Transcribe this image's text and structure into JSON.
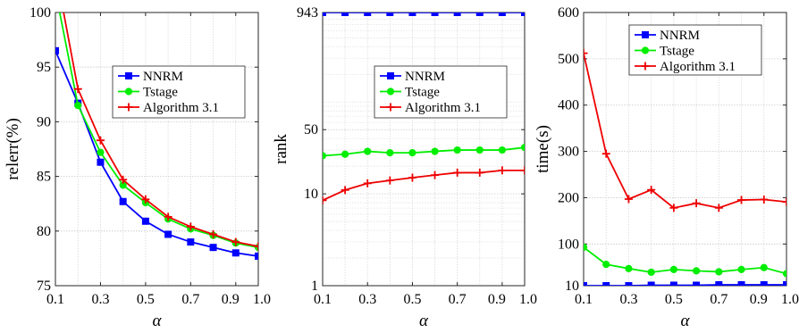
{
  "chart_data": [
    {
      "type": "line",
      "xlabel": "α",
      "ylabel": "relerr(%)",
      "xlim": [
        0.1,
        1.0
      ],
      "ylim": [
        75,
        100
      ],
      "yscale": "linear",
      "xticks": [
        "0.1",
        "0.3",
        "0.5",
        "0.7",
        "0.9",
        "1.0"
      ],
      "yticks": [
        "75",
        "80",
        "85",
        "90",
        "95",
        "100"
      ],
      "grid": true,
      "legend_position": "center-right",
      "series": [
        {
          "name": "NNRM",
          "color": "#0000ff",
          "marker": "square",
          "x": [
            0.1,
            0.2,
            0.3,
            0.4,
            0.5,
            0.6,
            0.7,
            0.8,
            0.9,
            1.0
          ],
          "y": [
            96.5,
            91.7,
            86.3,
            82.7,
            80.9,
            79.7,
            79.0,
            78.5,
            78.0,
            77.7
          ]
        },
        {
          "name": "Tstage",
          "color": "#00ee00",
          "marker": "circle",
          "x": [
            0.1,
            0.2,
            0.3,
            0.4,
            0.5,
            0.6,
            0.7,
            0.8,
            0.9,
            1.0
          ],
          "y": [
            102.0,
            91.5,
            87.2,
            84.2,
            82.6,
            81.1,
            80.2,
            79.6,
            78.9,
            78.5
          ]
        },
        {
          "name": "Algorithm 3.1",
          "color": "#ee0000",
          "marker": "plus",
          "x": [
            0.1,
            0.2,
            0.3,
            0.4,
            0.5,
            0.6,
            0.7,
            0.8,
            0.9,
            1.0
          ],
          "y": [
            104.0,
            93.0,
            88.3,
            84.7,
            82.9,
            81.3,
            80.4,
            79.7,
            79.0,
            78.6
          ]
        }
      ]
    },
    {
      "type": "line",
      "xlabel": "α",
      "ylabel": "rank",
      "xlim": [
        0.1,
        1.0
      ],
      "ylim": [
        1,
        943
      ],
      "yscale": "log",
      "xticks": [
        "0.1",
        "0.3",
        "0.5",
        "0.7",
        "0.9",
        "1.0"
      ],
      "yticks": [
        "1",
        "10",
        "50",
        "943"
      ],
      "grid": true,
      "legend_position": "center-right",
      "series": [
        {
          "name": "NNRM",
          "color": "#0000ff",
          "marker": "square",
          "x": [
            0.1,
            0.2,
            0.3,
            0.4,
            0.5,
            0.6,
            0.7,
            0.8,
            0.9,
            1.0
          ],
          "y": [
            943,
            943,
            943,
            943,
            943,
            943,
            943,
            943,
            943,
            943
          ]
        },
        {
          "name": "Tstage",
          "color": "#00ee00",
          "marker": "circle",
          "x": [
            0.1,
            0.2,
            0.3,
            0.4,
            0.5,
            0.6,
            0.7,
            0.8,
            0.9,
            1.0
          ],
          "y": [
            26,
            27,
            29,
            28,
            28,
            29,
            30,
            30,
            30,
            32
          ]
        },
        {
          "name": "Algorithm 3.1",
          "color": "#ee0000",
          "marker": "plus",
          "x": [
            0.1,
            0.2,
            0.3,
            0.4,
            0.5,
            0.6,
            0.7,
            0.8,
            0.9,
            1.0
          ],
          "y": [
            8.5,
            11,
            13,
            14,
            15,
            16,
            17,
            17,
            18,
            18
          ]
        }
      ]
    },
    {
      "type": "line",
      "xlabel": "α",
      "ylabel": "time(s)",
      "xlim": [
        0.1,
        1.0
      ],
      "ylim": [
        10,
        600
      ],
      "yscale": "linear",
      "xticks": [
        "0.1",
        "0.3",
        "0.5",
        "0.7",
        "0.9",
        "1.0"
      ],
      "yticks": [
        "10",
        "100",
        "200",
        "300",
        "400",
        "500",
        "600"
      ],
      "grid": true,
      "legend_position": "top-right",
      "series": [
        {
          "name": "NNRM",
          "color": "#0000ff",
          "marker": "square",
          "x": [
            0.1,
            0.2,
            0.3,
            0.4,
            0.5,
            0.6,
            0.7,
            0.8,
            0.9,
            1.0
          ],
          "y": [
            10,
            10,
            10,
            11,
            11,
            11,
            12,
            12,
            12,
            12
          ]
        },
        {
          "name": "Tstage",
          "color": "#00ee00",
          "marker": "circle",
          "x": [
            0.1,
            0.2,
            0.3,
            0.4,
            0.5,
            0.6,
            0.7,
            0.8,
            0.9,
            1.0
          ],
          "y": [
            93,
            56,
            47,
            39,
            45,
            42,
            40,
            45,
            49,
            36
          ]
        },
        {
          "name": "Algorithm 3.1",
          "color": "#ee0000",
          "marker": "plus",
          "x": [
            0.1,
            0.2,
            0.3,
            0.4,
            0.5,
            0.6,
            0.7,
            0.8,
            0.9,
            1.0
          ],
          "y": [
            512,
            295,
            197,
            217,
            178,
            188,
            178,
            195,
            196,
            191
          ]
        }
      ]
    }
  ]
}
